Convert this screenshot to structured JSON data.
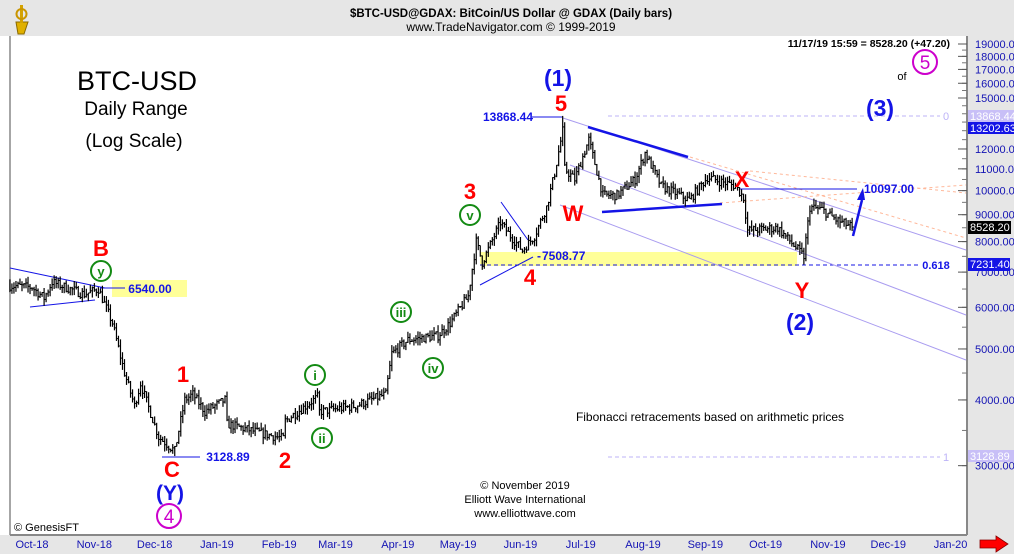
{
  "header": {
    "title": "$BTC-USD@GDAX:  BitCoin/US Dollar @ GDAX  (Daily bars)",
    "subtitle": "www.TradeNavigator.com © 1999-2019",
    "last_quote": "11/17/19 15:59 = 8528.20 (+47.20)"
  },
  "chart_data": {
    "type": "bar",
    "title": "BTC-USD",
    "subtitle_lines": [
      "Daily Range",
      "(Log Scale)"
    ],
    "scale": "log",
    "ylim": [
      2600,
      20000
    ],
    "y_ticks": [
      19000,
      18000,
      17000,
      16000,
      15000,
      12000,
      11000,
      10000,
      9000,
      8000,
      7000,
      6000,
      5000,
      4000,
      3000
    ],
    "y_tick_labels": [
      "19000.00",
      "18000.00",
      "17000.00",
      "16000.00",
      "15000.00",
      "12000.00",
      "11000.00",
      "10000.00",
      "9000.00",
      "8000.00",
      "7000.00",
      "6000.00",
      "5000.00",
      "4000.00",
      "3000.00"
    ],
    "x_start": "2018-10-01",
    "x_ticks": [
      {
        "label": "Oct-18",
        "day": 0
      },
      {
        "label": "Nov-18",
        "day": 31
      },
      {
        "label": "Dec-18",
        "day": 61
      },
      {
        "label": "Jan-19",
        "day": 92
      },
      {
        "label": "Feb-19",
        "day": 123
      },
      {
        "label": "Mar-19",
        "day": 151
      },
      {
        "label": "Apr-19",
        "day": 182
      },
      {
        "label": "May-19",
        "day": 212
      },
      {
        "label": "Jun-19",
        "day": 243
      },
      {
        "label": "Jul-19",
        "day": 273
      },
      {
        "label": "Aug-19",
        "day": 304
      },
      {
        "label": "Sep-19",
        "day": 335
      },
      {
        "label": "Oct-19",
        "day": 365
      },
      {
        "label": "Nov-19",
        "day": 396
      },
      {
        "label": "Dec-19",
        "day": 426
      },
      {
        "label": "Jan-20",
        "day": 457
      }
    ],
    "price_path_days_from_start": [
      [
        -7,
        6600
      ],
      [
        4,
        6550
      ],
      [
        10,
        6250
      ],
      [
        14,
        6700
      ],
      [
        30,
        6350
      ],
      [
        37,
        6500
      ],
      [
        44,
        5600
      ],
      [
        50,
        4500
      ],
      [
        55,
        3900
      ],
      [
        58,
        4300
      ],
      [
        67,
        3400
      ],
      [
        75,
        3200
      ],
      [
        80,
        4000
      ],
      [
        84,
        4100
      ],
      [
        90,
        3800
      ],
      [
        100,
        4000
      ],
      [
        101,
        3600
      ],
      [
        119,
        3450
      ],
      [
        129,
        3380
      ],
      [
        130,
        3650
      ],
      [
        146,
        4050
      ],
      [
        147,
        3800
      ],
      [
        165,
        3900
      ],
      [
        180,
        4100
      ],
      [
        183,
        4900
      ],
      [
        191,
        5200
      ],
      [
        206,
        5300
      ],
      [
        212,
        5600
      ],
      [
        221,
        6300
      ],
      [
        225,
        8000
      ],
      [
        228,
        7300
      ],
      [
        237,
        8700
      ],
      [
        242,
        8200
      ],
      [
        248,
        7700
      ],
      [
        254,
        8200
      ],
      [
        260,
        9300
      ],
      [
        264,
        10800
      ],
      [
        268,
        13000
      ],
      [
        269,
        11000
      ],
      [
        274,
        10500
      ],
      [
        281,
        12500
      ],
      [
        288,
        9800
      ],
      [
        295,
        9800
      ],
      [
        304,
        10500
      ],
      [
        309,
        11800
      ],
      [
        317,
        10200
      ],
      [
        331,
        9600
      ],
      [
        340,
        10600
      ],
      [
        354,
        10200
      ],
      [
        358,
        9700
      ],
      [
        360,
        8400
      ],
      [
        375,
        8500
      ],
      [
        388,
        7500
      ],
      [
        391,
        9300
      ],
      [
        397,
        9200
      ],
      [
        404,
        8800
      ],
      [
        412,
        8528.2
      ]
    ],
    "levels": {
      "b_high": "6540.00",
      "c_low": "3128.89",
      "top_5": "13868.44",
      "wave4_low": "7508.77",
      "x_level": "10097.00",
      "fib_0618": "0.618",
      "fib_0": "0",
      "fib_1": "1"
    },
    "axis_badges": {
      "fib0_price": "13868.44",
      "upper_channel": "13202.63",
      "last_price": "8528.20",
      "fib618_price": "7231.40",
      "fib1_price": "3128.89"
    },
    "wave_labels": {
      "B": "B",
      "y": "y",
      "one": "1",
      "C": "C",
      "Y_paren": "(Y)",
      "four_circle": "4",
      "two": "2",
      "i": "i",
      "ii": "ii",
      "iii": "iii",
      "iv": "iv",
      "v": "v",
      "three": "3",
      "four": "4",
      "five": "5",
      "one_paren": "(1)",
      "W": "W",
      "X": "X",
      "Y": "Y",
      "two_paren": "(2)",
      "three_paren": "(3)",
      "of": "of",
      "five_circle": "5"
    },
    "annotation": "Fibonacci retracements based on arithmetic prices",
    "colors": {
      "bars": "#000000",
      "wave_red": "#ff0000",
      "wave_blue": "#1414e6",
      "wave_green": "#138a13",
      "magenta": "#cc00cc",
      "highlight": "#ffff99",
      "channel": "#a99cf0"
    }
  },
  "footer": {
    "copyright": "© November 2019",
    "org": "Elliott Wave International",
    "url": "www.elliottwave.com",
    "genesis": "© GenesisFT"
  }
}
